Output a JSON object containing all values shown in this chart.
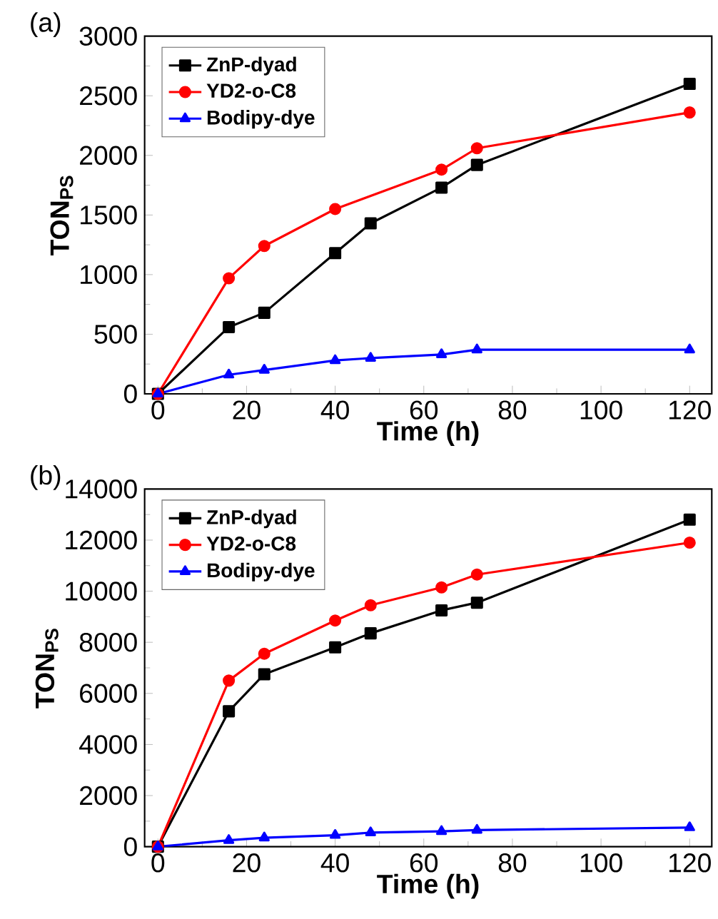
{
  "chart_data": [
    {
      "type": "line",
      "title": "(a)",
      "xlabel": "Time (h)",
      "ylabel": "TON$_{PS}$",
      "xlim": [
        -3,
        125
      ],
      "ylim": [
        0,
        3000
      ],
      "xticks": [
        0,
        20,
        40,
        60,
        80,
        100,
        120
      ],
      "yticks": [
        0,
        500,
        1000,
        1500,
        2000,
        2500,
        3000
      ],
      "legend": "top left",
      "grid": false,
      "series": [
        {
          "name": "ZnP-dyad",
          "color": "#000000",
          "marker": "square",
          "x": [
            0,
            16,
            24,
            40,
            48,
            64,
            72,
            120
          ],
          "values": [
            0,
            560,
            680,
            1180,
            1430,
            1730,
            1920,
            2600
          ]
        },
        {
          "name": "YD2-o-C8",
          "color": "#ff0000",
          "marker": "circle",
          "x": [
            0,
            16,
            24,
            40,
            64,
            72,
            120
          ],
          "values": [
            0,
            970,
            1240,
            1550,
            1880,
            2060,
            2360
          ]
        },
        {
          "name": "Bodipy-dye",
          "color": "#0000ff",
          "marker": "triangle",
          "x": [
            0,
            16,
            24,
            40,
            48,
            64,
            72,
            120
          ],
          "values": [
            0,
            160,
            200,
            280,
            300,
            330,
            370,
            370
          ]
        }
      ]
    },
    {
      "type": "line",
      "title": "(b)",
      "xlabel": "Time (h)",
      "ylabel": "TON$_{PS}$",
      "xlim": [
        -3,
        125
      ],
      "ylim": [
        0,
        14000
      ],
      "xticks": [
        0,
        20,
        40,
        60,
        80,
        100,
        120
      ],
      "yticks": [
        0,
        2000,
        4000,
        6000,
        8000,
        10000,
        12000,
        14000
      ],
      "legend": "top left",
      "grid": false,
      "series": [
        {
          "name": "ZnP-dyad",
          "color": "#000000",
          "marker": "square",
          "x": [
            0,
            16,
            24,
            40,
            48,
            64,
            72,
            120
          ],
          "values": [
            0,
            5300,
            6750,
            7800,
            8350,
            9250,
            9550,
            12800
          ]
        },
        {
          "name": "YD2-o-C8",
          "color": "#ff0000",
          "marker": "circle",
          "x": [
            0,
            16,
            24,
            40,
            48,
            64,
            72,
            120
          ],
          "values": [
            0,
            6500,
            7550,
            8850,
            9450,
            10150,
            10650,
            11900
          ]
        },
        {
          "name": "Bodipy-dye",
          "color": "#0000ff",
          "marker": "triangle",
          "x": [
            0,
            16,
            24,
            40,
            48,
            64,
            72,
            120
          ],
          "values": [
            0,
            250,
            350,
            450,
            550,
            600,
            650,
            750
          ]
        }
      ]
    }
  ]
}
